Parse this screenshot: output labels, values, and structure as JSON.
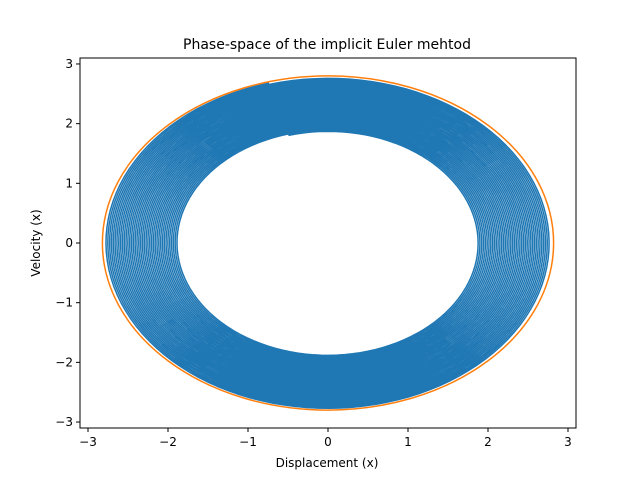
{
  "chart_data": {
    "type": "line",
    "title": "Phase-space of the implicit Euler mehtod",
    "xlabel": "Displacement (x)",
    "ylabel": "Velocity (x)",
    "xlim": [
      -3.1,
      3.1
    ],
    "ylim": [
      -3.1,
      3.1
    ],
    "xticks": [
      -3,
      -2,
      -1,
      0,
      1,
      2,
      3
    ],
    "yticks": [
      -3,
      -2,
      -1,
      0,
      1,
      2,
      3
    ],
    "xtick_labels": [
      "−3",
      "−2",
      "−1",
      "0",
      "1",
      "2",
      "3"
    ],
    "ytick_labels": [
      "−3",
      "−2",
      "−1",
      "0",
      "1",
      "2",
      "3"
    ],
    "grid": false,
    "legend": "none",
    "series": [
      {
        "kind": "spiral",
        "color": "#1f77b4",
        "start_point": [
          -0.5,
          1.82
        ],
        "outer_radius_x": 2.78,
        "inner_radius_x": 1.87,
        "outer_radius_y": 2.78,
        "inner_radius_y": 1.87
      },
      {
        "kind": "circle",
        "color": "#ff7f0e",
        "radius_x": 2.82,
        "radius_y": 2.8
      }
    ]
  }
}
